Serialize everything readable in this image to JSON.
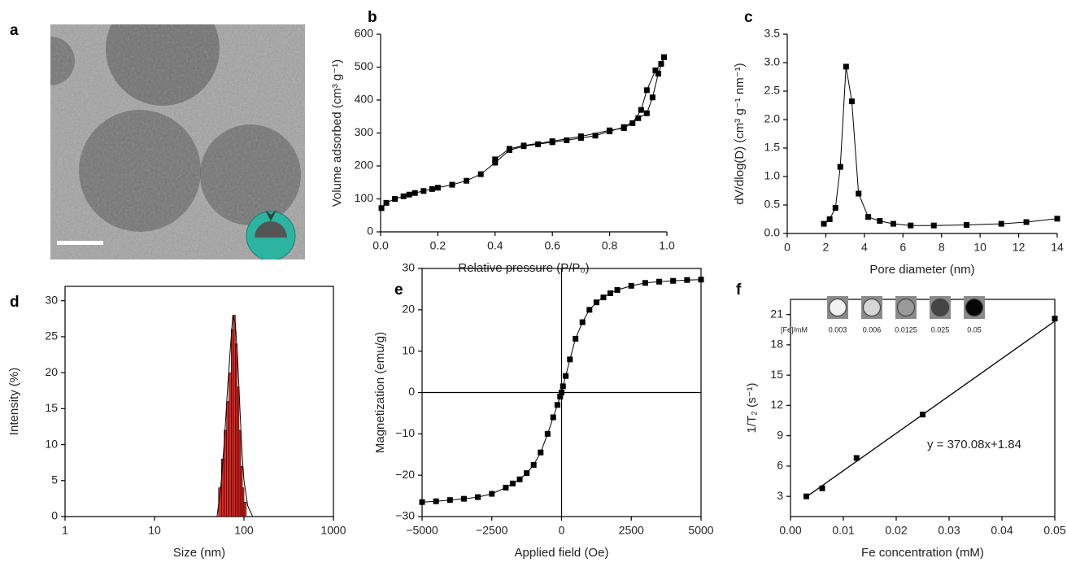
{
  "chart_data": [
    {
      "type": "image",
      "panel_label": "a"
    },
    {
      "type": "line",
      "panel_label": "b",
      "marker": "square",
      "x_label": "Relative pressure (P/P₀)",
      "y_label": "Volume adsorbed (cm³ g⁻¹)",
      "xlim": [
        0,
        1
      ],
      "ylim": [
        0,
        600
      ],
      "xticks": [
        {
          "value": 0,
          "label": "0.0"
        },
        0.2,
        0.4,
        0.6,
        0.8,
        {
          "value": 1,
          "label": "1.0"
        }
      ],
      "yticks": [
        0,
        100,
        200,
        300,
        400,
        500,
        600
      ],
      "series": [
        {
          "color": "#000000",
          "x": [
            0.003,
            0.02,
            0.05,
            0.08,
            0.1,
            0.12,
            0.15,
            0.18,
            0.2,
            0.25,
            0.3,
            0.35,
            0.4,
            0.45,
            0.5,
            0.55,
            0.6,
            0.65,
            0.7,
            0.75,
            0.8,
            0.85,
            0.9,
            0.93,
            0.95,
            0.97,
            0.99
          ],
          "values": [
            72,
            88,
            100,
            108,
            113,
            118,
            124,
            130,
            134,
            143,
            155,
            175,
            210,
            248,
            260,
            266,
            272,
            278,
            285,
            292,
            305,
            318,
            345,
            360,
            408,
            480,
            530
          ]
        },
        {
          "color": "#000000",
          "x": [
            0.99,
            0.98,
            0.96,
            0.93,
            0.91,
            0.88,
            0.85,
            0.8,
            0.7,
            0.6,
            0.5,
            0.45,
            0.4
          ],
          "values": [
            530,
            510,
            490,
            430,
            370,
            330,
            315,
            308,
            290,
            275,
            262,
            252,
            220
          ]
        }
      ]
    },
    {
      "type": "line",
      "panel_label": "c",
      "marker": "square",
      "x_label": "Pore diameter (nm)",
      "y_label": "dV/dlog(D) (cm³ g⁻¹ nm⁻¹)",
      "xlim": [
        0,
        14
      ],
      "ylim": [
        0,
        3.5
      ],
      "xticks": [
        0,
        2,
        4,
        6,
        8,
        10,
        12,
        14
      ],
      "yticks": [
        {
          "value": 0,
          "label": "0.0"
        },
        0.5,
        {
          "value": 1,
          "label": "1.0"
        },
        1.5,
        {
          "value": 2,
          "label": "2.0"
        },
        2.5,
        {
          "value": 3,
          "label": "3.0"
        },
        3.5
      ],
      "series": [
        {
          "color": "#000000",
          "x": [
            1.9,
            2.2,
            2.5,
            2.75,
            3.05,
            3.35,
            3.7,
            4.2,
            4.8,
            5.5,
            6.4,
            7.6,
            9.3,
            11.1,
            12.4,
            14
          ],
          "values": [
            0.17,
            0.25,
            0.45,
            1.17,
            2.93,
            2.32,
            0.7,
            0.29,
            0.22,
            0.17,
            0.14,
            0.14,
            0.15,
            0.17,
            0.2,
            0.26
          ]
        }
      ]
    },
    {
      "type": "histogram",
      "panel_label": "d",
      "x_log": true,
      "color": "#e8251f",
      "x_label": "Size (nm)",
      "y_label": "Intensity (%)",
      "xlim": [
        1,
        1000
      ],
      "ylim": [
        0,
        32
      ],
      "xticks": [
        1,
        10,
        100,
        1000
      ],
      "yticks": [
        0,
        5,
        10,
        15,
        20,
        25,
        30
      ],
      "bins": [
        52,
        56,
        60,
        64,
        68,
        72,
        76,
        80,
        84,
        88,
        92,
        96,
        100,
        106
      ],
      "counts": [
        4,
        8,
        12,
        16,
        20,
        26,
        28,
        24,
        18,
        12,
        7,
        4,
        2
      ],
      "fit": {
        "color": "#000000",
        "x": [
          50,
          55,
          60,
          65,
          70,
          75,
          80,
          85,
          90,
          95,
          100,
          110,
          125
        ],
        "values": [
          0,
          4,
          10,
          17,
          23,
          28,
          27,
          22,
          15,
          9,
          5,
          1.5,
          0
        ]
      }
    },
    {
      "type": "line",
      "panel_label": "e",
      "marker": "square",
      "zero_lines": true,
      "x_label": "Applied field (Oe)",
      "y_label": "Magnetization (emu/g)",
      "xlim": [
        -5000,
        5000
      ],
      "ylim": [
        -30,
        30
      ],
      "xticks": [
        {
          "value": -5000,
          "label": "−5000"
        },
        {
          "value": -2500,
          "label": "−2500"
        },
        0,
        2500,
        5000
      ],
      "yticks": [
        {
          "value": -30,
          "label": "−30"
        },
        {
          "value": -20,
          "label": "−20"
        },
        {
          "value": -10,
          "label": "−10"
        },
        0,
        10,
        20,
        30
      ],
      "series": [
        {
          "color": "#000000",
          "x": [
            -5000,
            -4500,
            -4000,
            -3500,
            -3000,
            -2500,
            -2000,
            -1750,
            -1500,
            -1250,
            -1000,
            -750,
            -500,
            -300,
            -150,
            -50,
            0,
            50,
            150,
            300,
            500,
            750,
            1000,
            1250,
            1500,
            1750,
            2000,
            2500,
            3000,
            3500,
            4000,
            4500,
            5000
          ],
          "values": [
            -26.5,
            -26.3,
            -26,
            -25.7,
            -25.3,
            -24.5,
            -23,
            -22,
            -21,
            -19.5,
            -17.5,
            -14.5,
            -10,
            -6,
            -3,
            -1,
            0,
            1.5,
            4,
            8,
            13,
            17,
            20,
            21.8,
            23,
            24,
            24.8,
            25.8,
            26.5,
            26.8,
            27,
            27.2,
            27.3
          ]
        }
      ]
    },
    {
      "type": "scatter",
      "panel_label": "f",
      "marker": "square",
      "x_label": "Fe concentration (mM)",
      "y_label": "1/T₂ (s⁻¹)",
      "annotation": "y = 370.08x+1.84",
      "xlim": [
        0,
        0.05
      ],
      "ylim": [
        1,
        22.5
      ],
      "xticks": [
        {
          "value": 0,
          "label": "0.00"
        },
        0.01,
        0.02,
        0.03,
        0.04,
        0.05
      ],
      "yticks": [
        3,
        6,
        9,
        12,
        15,
        18,
        21
      ],
      "series": [
        {
          "color": "#000000",
          "x": [
            0.003,
            0.006,
            0.0125,
            0.025,
            0.05
          ],
          "values": [
            3.0,
            3.8,
            6.8,
            11.1,
            20.6
          ]
        }
      ],
      "fit": {
        "color": "#000000",
        "x": [
          0.003,
          0.05
        ],
        "values": [
          2.95,
          20.34
        ]
      },
      "inset": {
        "label": "[Fe]/mM",
        "concentrations": [
          0.003,
          0.006,
          0.0125,
          0.025,
          0.05
        ],
        "colors": [
          "#f2f2f2",
          "#d6d6d6",
          "#9a9a9a",
          "#454545",
          "#060606"
        ]
      }
    }
  ]
}
